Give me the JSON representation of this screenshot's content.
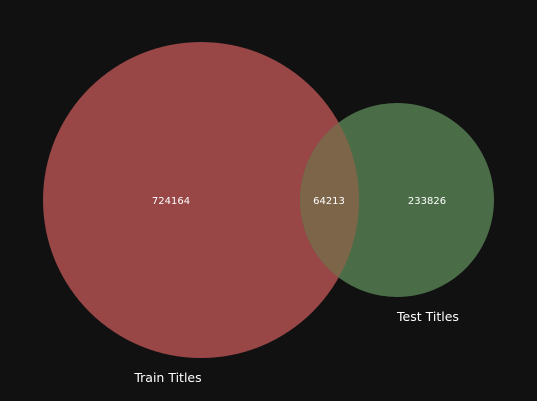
{
  "diagram": {
    "type": "venn2",
    "background_color": "#111111",
    "sets": [
      {
        "label": "Train Titles",
        "color": "#984646"
      },
      {
        "label": "Test Titles",
        "color": "#4a6d48"
      }
    ],
    "regions": {
      "train_only": "724164",
      "intersection": "64213",
      "test_only": "233826"
    },
    "intersection_color": "#7c6549"
  }
}
